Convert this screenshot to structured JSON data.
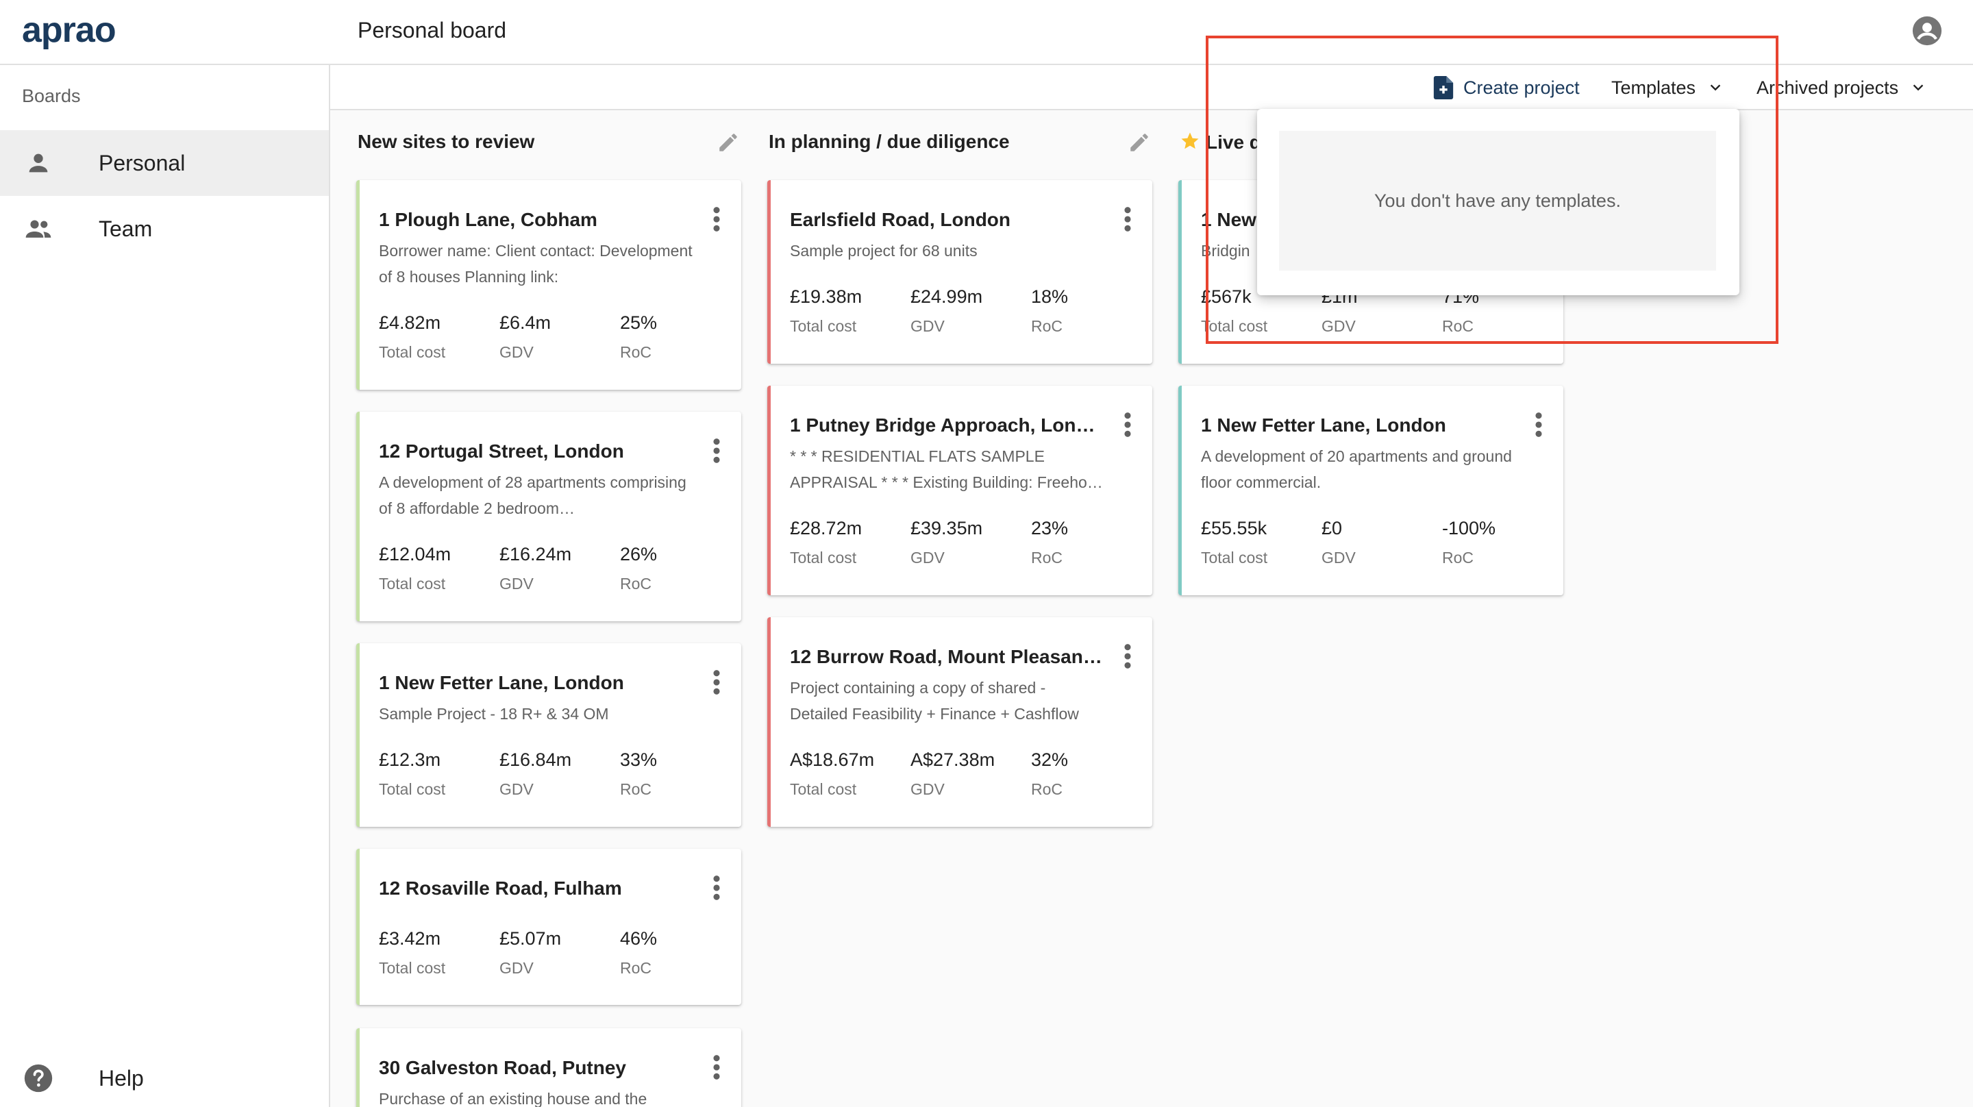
{
  "app": {
    "logo": "aprao",
    "page_title": "Personal board"
  },
  "sidebar": {
    "heading": "Boards",
    "items": [
      {
        "label": "Personal",
        "icon": "person-icon",
        "active": true
      },
      {
        "label": "Team",
        "icon": "people-icon",
        "active": false
      }
    ],
    "help_label": "Help"
  },
  "toolbar": {
    "create_label": "Create project",
    "templates_label": "Templates",
    "archived_label": "Archived projects"
  },
  "templates_menu": {
    "empty_message": "You don't have any templates."
  },
  "columns": [
    {
      "title": "New sites to review",
      "accent": "#c5e1a5",
      "cards": [
        {
          "title": "1 Plough Lane, Cobham",
          "desc": "Borrower name: Client contact: Development of 8 houses Planning link:",
          "cost": "£4.82m",
          "gdv": "£6.4m",
          "roc": "25%"
        },
        {
          "title": "12 Portugal Street, London",
          "desc": "A development of 28 apartments comprising of 8 affordable 2 bedroom…",
          "cost": "£12.04m",
          "gdv": "£16.24m",
          "roc": "26%"
        },
        {
          "title": "1 New Fetter Lane, London",
          "desc": "Sample Project - 18 R+ & 34 OM",
          "cost": "£12.3m",
          "gdv": "£16.84m",
          "roc": "33%"
        },
        {
          "title": "12 Rosaville Road, Fulham",
          "desc": "",
          "cost": "£3.42m",
          "gdv": "£5.07m",
          "roc": "46%"
        },
        {
          "title": "30 Galveston Road, Putney",
          "desc": "Purchase of an existing house and the",
          "cost": "",
          "gdv": "",
          "roc": ""
        }
      ]
    },
    {
      "title": "In planning / due diligence",
      "accent": "#e57373",
      "cards": [
        {
          "title": "Earlsfield Road, London",
          "desc": "Sample project for 68 units",
          "cost": "£19.38m",
          "gdv": "£24.99m",
          "roc": "18%"
        },
        {
          "title": "1 Putney Bridge Approach, Londo…",
          "desc": "* * * RESIDENTIAL FLATS SAMPLE APPRAISAL * * * Existing Building: Freeho…",
          "cost": "£28.72m",
          "gdv": "£39.35m",
          "roc": "23%"
        },
        {
          "title": "12 Burrow Road, Mount Pleasant, …",
          "desc": "Project containing a copy of shared - Detailed Feasibility + Finance + Cashflow",
          "cost": "A$18.67m",
          "gdv": "A$27.38m",
          "roc": "32%"
        }
      ]
    },
    {
      "title": "Live d",
      "accent": "#80cbc4",
      "cards": [
        {
          "title": "1 New",
          "desc": "Bridgin",
          "cost": "£567k",
          "gdv": "£1m",
          "roc": "71%"
        },
        {
          "title": "1 New Fetter Lane, London",
          "desc": "A development of 20 apartments and ground floor commercial.",
          "cost": "£55.55k",
          "gdv": "£0",
          "roc": "-100%"
        }
      ]
    }
  ],
  "stat_labels": {
    "cost": "Total cost",
    "gdv": "GDV",
    "roc": "RoC"
  }
}
